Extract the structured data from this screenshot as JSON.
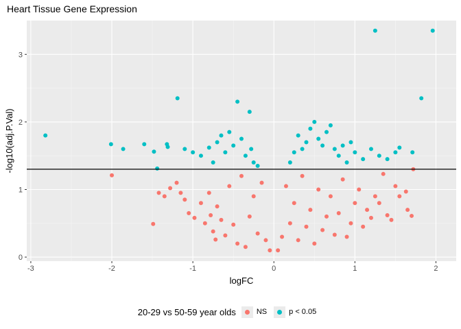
{
  "chart_data": {
    "type": "scatter",
    "title": "Heart Tissue Gene Expression",
    "xlabel": "logFC",
    "ylabel": "-log10(adj.P.Val)",
    "xlim": [
      -3.05,
      2.25
    ],
    "ylim": [
      -0.06,
      3.5
    ],
    "x_ticks": [
      "-3",
      "-2",
      "-1",
      "0",
      "1",
      "2"
    ],
    "x_tick_values": [
      -3,
      -2,
      -1,
      0,
      1,
      2
    ],
    "y_ticks": [
      "0",
      "1",
      "2",
      "3"
    ],
    "y_tick_values": [
      0,
      1,
      2,
      3
    ],
    "threshold_line": 1.3,
    "grid": true,
    "legend": {
      "title": "20-29 vs 50-59 year olds",
      "position": "bottom",
      "entries": [
        {
          "label": "NS",
          "color": "#F8766D"
        },
        {
          "label": "p < 0.05",
          "color": "#00BFC4"
        }
      ]
    },
    "series": [
      {
        "name": "NS",
        "color": "#F8766D",
        "points": [
          [
            -2.0,
            1.21
          ],
          [
            -1.49,
            0.49
          ],
          [
            -1.42,
            0.95
          ],
          [
            -1.35,
            0.9
          ],
          [
            -1.28,
            1.02
          ],
          [
            -1.2,
            1.1
          ],
          [
            -1.15,
            0.95
          ],
          [
            -1.1,
            0.85
          ],
          [
            -1.05,
            0.65
          ],
          [
            -0.98,
            0.58
          ],
          [
            -0.9,
            0.8
          ],
          [
            -0.85,
            0.5
          ],
          [
            -0.8,
            0.95
          ],
          [
            -0.78,
            0.62
          ],
          [
            -0.75,
            0.38
          ],
          [
            -0.72,
            0.26
          ],
          [
            -0.7,
            0.75
          ],
          [
            -0.65,
            0.55
          ],
          [
            -0.6,
            0.32
          ],
          [
            -0.55,
            1.05
          ],
          [
            -0.5,
            0.48
          ],
          [
            -0.45,
            0.2
          ],
          [
            -0.4,
            1.2
          ],
          [
            -0.35,
            0.15
          ],
          [
            -0.3,
            0.6
          ],
          [
            -0.25,
            0.9
          ],
          [
            -0.2,
            0.35
          ],
          [
            -0.15,
            1.1
          ],
          [
            -0.1,
            0.25
          ],
          [
            -0.05,
            0.1
          ],
          [
            0.05,
            0.1
          ],
          [
            0.1,
            0.3
          ],
          [
            0.15,
            1.05
          ],
          [
            0.2,
            0.5
          ],
          [
            0.25,
            0.8
          ],
          [
            0.3,
            0.25
          ],
          [
            0.35,
            1.2
          ],
          [
            0.4,
            0.45
          ],
          [
            0.45,
            0.7
          ],
          [
            0.5,
            0.2
          ],
          [
            0.55,
            1.0
          ],
          [
            0.6,
            0.4
          ],
          [
            0.65,
            0.6
          ],
          [
            0.7,
            0.9
          ],
          [
            0.75,
            0.33
          ],
          [
            0.8,
            0.65
          ],
          [
            0.85,
            1.15
          ],
          [
            0.9,
            0.3
          ],
          [
            0.95,
            0.5
          ],
          [
            1.0,
            0.8
          ],
          [
            1.05,
            1.0
          ],
          [
            1.1,
            0.45
          ],
          [
            1.15,
            0.7
          ],
          [
            1.2,
            0.58
          ],
          [
            1.25,
            0.9
          ],
          [
            1.3,
            0.8
          ],
          [
            1.35,
            1.23
          ],
          [
            1.4,
            0.62
          ],
          [
            1.45,
            0.55
          ],
          [
            1.5,
            1.05
          ],
          [
            1.55,
            0.9
          ],
          [
            1.63,
            0.97
          ],
          [
            1.65,
            0.7
          ],
          [
            1.72,
            1.3
          ],
          [
            1.7,
            0.61
          ]
        ]
      },
      {
        "name": "p < 0.05",
        "color": "#00BFC4",
        "points": [
          [
            -2.82,
            1.8
          ],
          [
            -2.01,
            1.67
          ],
          [
            -1.86,
            1.6
          ],
          [
            -1.6,
            1.67
          ],
          [
            -1.48,
            1.56
          ],
          [
            -1.44,
            1.31
          ],
          [
            -1.32,
            1.67
          ],
          [
            -1.31,
            1.63
          ],
          [
            -1.19,
            2.35
          ],
          [
            -1.1,
            1.6
          ],
          [
            -1.0,
            1.55
          ],
          [
            -0.9,
            1.5
          ],
          [
            -0.8,
            1.62
          ],
          [
            -0.75,
            1.4
          ],
          [
            -0.7,
            1.7
          ],
          [
            -0.65,
            1.8
          ],
          [
            -0.6,
            1.55
          ],
          [
            -0.55,
            1.85
          ],
          [
            -0.5,
            1.65
          ],
          [
            -0.45,
            2.3
          ],
          [
            -0.4,
            1.75
          ],
          [
            -0.35,
            1.5
          ],
          [
            -0.3,
            2.15
          ],
          [
            -0.28,
            1.6
          ],
          [
            -0.25,
            1.4
          ],
          [
            -0.2,
            1.35
          ],
          [
            0.2,
            1.4
          ],
          [
            0.25,
            1.55
          ],
          [
            0.3,
            1.8
          ],
          [
            0.35,
            1.6
          ],
          [
            0.4,
            1.7
          ],
          [
            0.45,
            1.9
          ],
          [
            0.5,
            2.0
          ],
          [
            0.55,
            1.75
          ],
          [
            0.6,
            1.65
          ],
          [
            0.65,
            1.85
          ],
          [
            0.7,
            1.95
          ],
          [
            0.75,
            1.6
          ],
          [
            0.8,
            1.5
          ],
          [
            0.85,
            1.65
          ],
          [
            0.9,
            1.4
          ],
          [
            0.95,
            1.7
          ],
          [
            1.0,
            1.55
          ],
          [
            1.1,
            1.45
          ],
          [
            1.2,
            1.6
          ],
          [
            1.25,
            3.35
          ],
          [
            1.3,
            1.5
          ],
          [
            1.4,
            1.45
          ],
          [
            1.5,
            1.55
          ],
          [
            1.55,
            1.62
          ],
          [
            1.71,
            1.55
          ],
          [
            1.82,
            2.35
          ],
          [
            1.96,
            3.35
          ]
        ]
      }
    ]
  }
}
